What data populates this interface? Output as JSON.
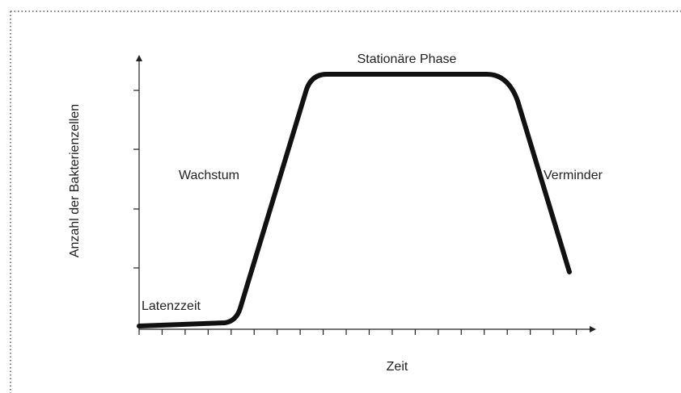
{
  "diagram": {
    "y_axis_label": "Anzahl der Bakterienzellen",
    "x_axis_label": "Zeit",
    "phases": [
      "Latenzzeit",
      "Wachstum",
      "Stationäre Phase",
      "Verminder"
    ]
  }
}
